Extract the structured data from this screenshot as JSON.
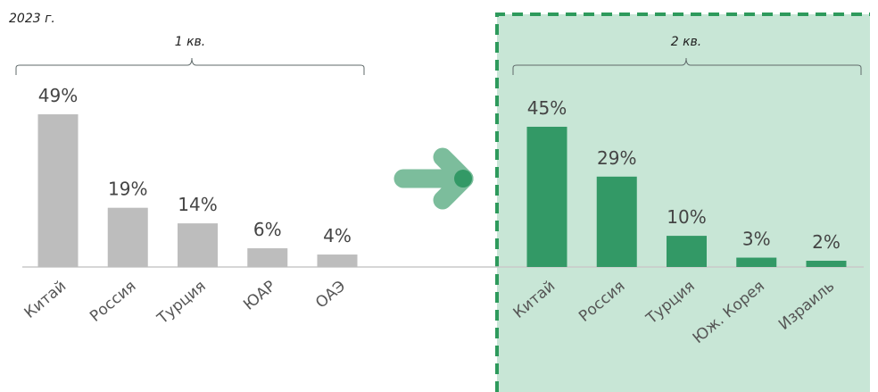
{
  "year_label": "2023 г.",
  "chart_data": [
    {
      "type": "bar",
      "title": "1 кв.",
      "categories": [
        "Китай",
        "Россия",
        "Турция",
        "ЮАР",
        "ОАЭ"
      ],
      "values": [
        49,
        19,
        14,
        6,
        4
      ],
      "value_labels": [
        "49%",
        "19%",
        "14%",
        "6%",
        "4%"
      ],
      "unit": "%",
      "bar_color": "#bdbdbd",
      "ylim": [
        0,
        50
      ]
    },
    {
      "type": "bar",
      "title": "2 кв.",
      "categories": [
        "Китай",
        "Россия",
        "Турция",
        "Юж. Корея",
        "Израиль"
      ],
      "values": [
        45,
        29,
        10,
        3,
        2
      ],
      "value_labels": [
        "45%",
        "29%",
        "10%",
        "3%",
        "2%"
      ],
      "unit": "%",
      "bar_color": "#339966",
      "ylim": [
        0,
        50
      ],
      "highlight_bg": "#c8e6d6",
      "highlight_border": "#2e9a5c"
    }
  ],
  "arrow_icon": "arrow-right-icon"
}
